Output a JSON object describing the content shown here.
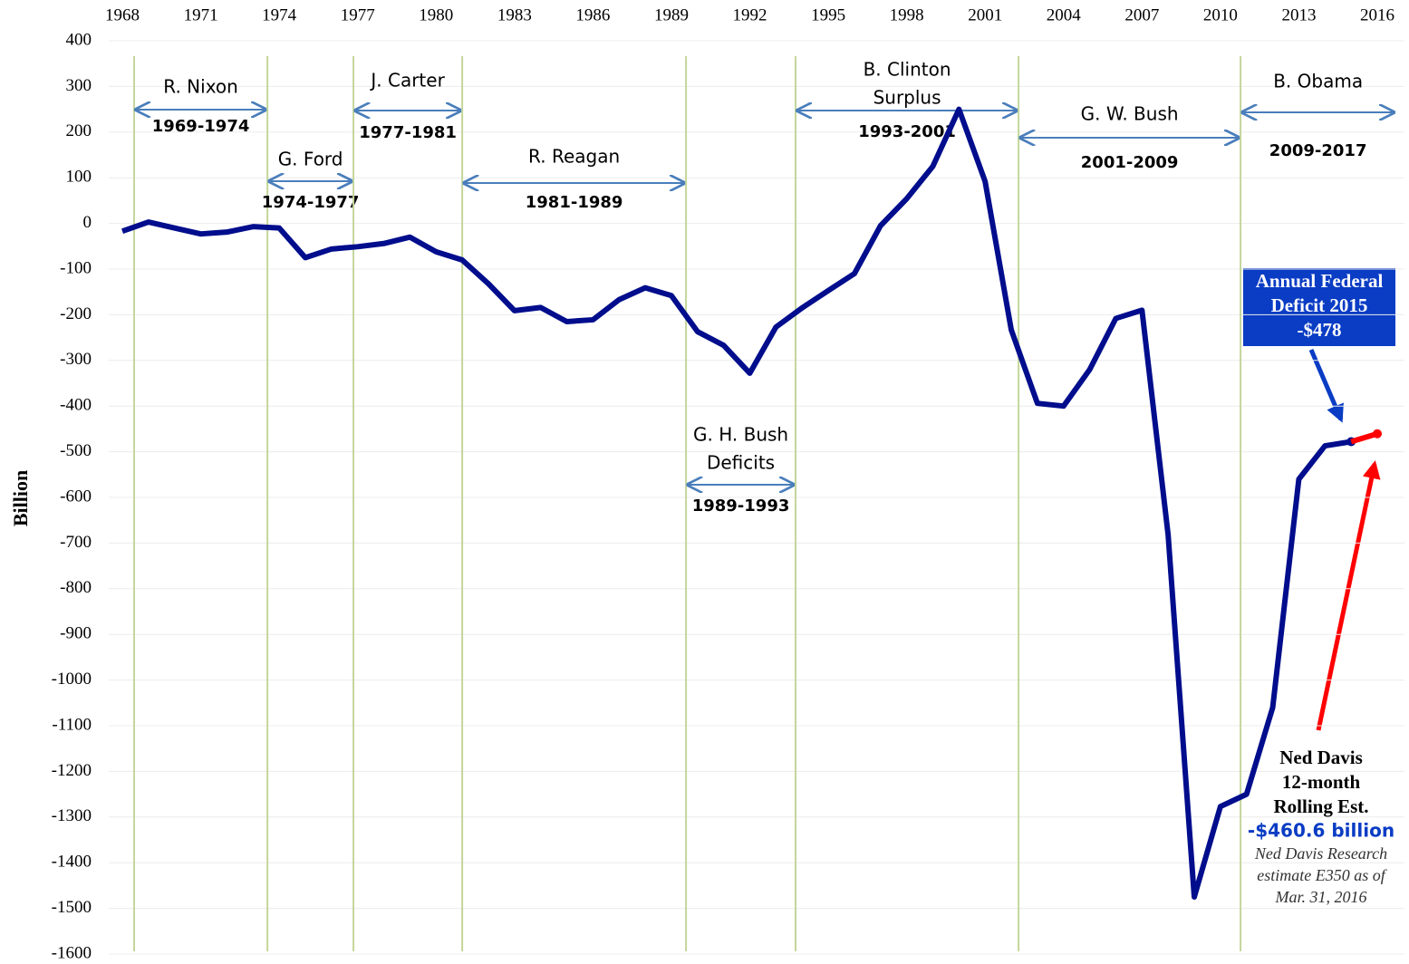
{
  "chart_data": {
    "type": "line",
    "y_label": "Billion",
    "x": [
      1968,
      1969,
      1970,
      1971,
      1972,
      1973,
      1974,
      1975,
      1976,
      1977,
      1978,
      1979,
      1980,
      1981,
      1982,
      1983,
      1984,
      1985,
      1986,
      1987,
      1988,
      1989,
      1990,
      1991,
      1992,
      1993,
      1994,
      1995,
      1996,
      1997,
      1998,
      1999,
      2000,
      2001,
      2002,
      2003,
      2004,
      2005,
      2006,
      2007,
      2008,
      2009,
      2010,
      2011,
      2012,
      2013,
      2014,
      2015,
      2016
    ],
    "series": [
      {
        "name": "Annual Federal Deficit",
        "color": "#000d8c",
        "values": [
          -17,
          3,
          -10,
          -23,
          -19,
          -7,
          -10,
          -75,
          -56,
          -51,
          -44,
          -30,
          -62,
          -80,
          -132,
          -191,
          -184,
          -215,
          -211,
          -167,
          -141,
          -158,
          -237,
          -267,
          -328,
          -227,
          -185,
          -147,
          -110,
          -5,
          54,
          125,
          250,
          92,
          -233,
          -394,
          -400,
          -320,
          -208,
          -190,
          -682,
          -1475,
          -1277,
          -1250,
          -1060,
          -560,
          -487,
          -478,
          null
        ]
      },
      {
        "name": "Ned Davis 12-month Rolling Est.",
        "color": "#ff0000",
        "values": [
          null,
          null,
          null,
          null,
          null,
          null,
          null,
          null,
          null,
          null,
          null,
          null,
          null,
          null,
          null,
          null,
          null,
          null,
          null,
          null,
          null,
          null,
          null,
          null,
          null,
          null,
          null,
          null,
          null,
          null,
          null,
          null,
          null,
          null,
          null,
          null,
          null,
          null,
          null,
          null,
          null,
          null,
          null,
          null,
          null,
          null,
          null,
          -478,
          -460.6
        ]
      }
    ],
    "xlim": [
      1968,
      2016
    ],
    "xticks": [
      1968,
      1971,
      1974,
      1977,
      1980,
      1983,
      1986,
      1989,
      1992,
      1995,
      1998,
      2001,
      2004,
      2007,
      2010,
      2013,
      2016
    ],
    "ylim": [
      -1600,
      400
    ],
    "yticks": [
      -1600,
      -1500,
      -1400,
      -1300,
      -1200,
      -1100,
      -1000,
      -900,
      -800,
      -700,
      -600,
      -500,
      -400,
      -300,
      -200,
      -100,
      0,
      100,
      200,
      300,
      400
    ],
    "grid": true,
    "terms": [
      {
        "name": [
          "R. Nixon"
        ],
        "years": "1969-1974",
        "start": 1968.45,
        "end": 1973.55
      },
      {
        "name": [
          "G. Ford"
        ],
        "years": "1974-1977",
        "start": 1973.55,
        "end": 1976.84
      },
      {
        "name": [
          "J. Carter"
        ],
        "years": "1977-1981",
        "start": 1976.84,
        "end": 1981.0
      },
      {
        "name": [
          "R. Reagan"
        ],
        "years": "1981-1989",
        "start": 1981.0,
        "end": 1989.56
      },
      {
        "name": [
          "G. H. Bush",
          "Deficits"
        ],
        "years": "1989-1993",
        "start": 1989.56,
        "end": 1993.75
      },
      {
        "name": [
          "B. Clinton",
          "Surplus"
        ],
        "years": "1993-2001",
        "start": 1993.75,
        "end": 2002.28
      },
      {
        "name": [
          "G. W. Bush"
        ],
        "years": "2001-2009",
        "start": 2002.28,
        "end": 2010.77
      },
      {
        "name": [
          "B. Obama"
        ],
        "years": "2009-2017",
        "start": 2010.77,
        "end": 2016.7
      }
    ],
    "box_annotation": [
      "Annual Federal",
      "Deficit 2015",
      "-$478"
    ],
    "estimate_annotation": {
      "title": [
        "Ned Davis",
        "12-month",
        "Rolling Est."
      ],
      "value": "-$460.6 billion",
      "source": [
        "Ned Davis Research",
        "estimate E350 as of",
        "Mar. 31, 2016"
      ]
    }
  }
}
